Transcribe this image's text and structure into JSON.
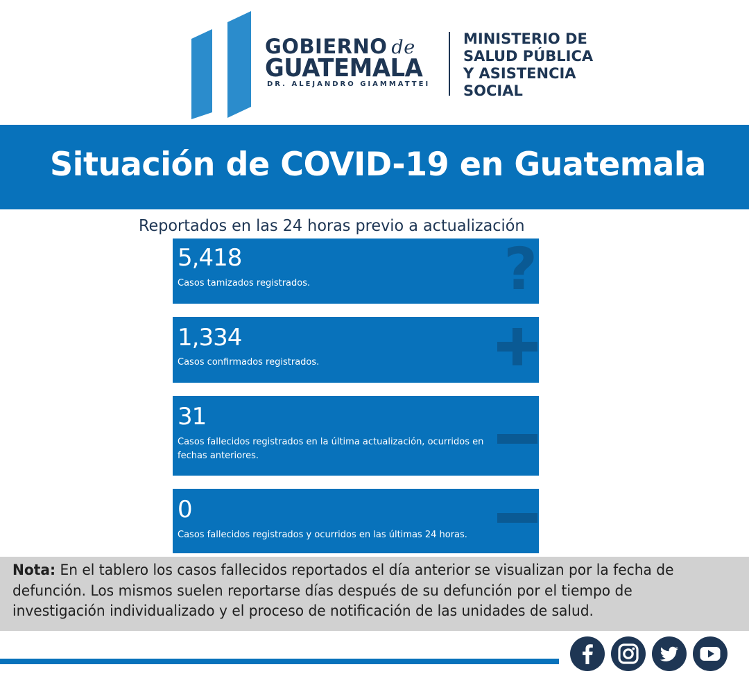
{
  "header": {
    "gobierno": "GOBIERNO",
    "de": "de",
    "guatemala": "GUATEMALA",
    "presidente": "DR. ALEJANDRO GIAMMATTEI",
    "ministerio_lines": [
      "MINISTERIO DE",
      "SALUD PÚBLICA",
      "Y ASISTENCIA",
      "SOCIAL"
    ]
  },
  "banner": {
    "title": "Situación de COVID-19 en Guatemala"
  },
  "subtitle": "Reportados en las 24 horas previo a actualización",
  "cards": [
    {
      "value": "5,418",
      "label": "Casos tamizados registrados.",
      "icon": "question-icon"
    },
    {
      "value": "1,334",
      "label": "Casos confirmados registrados.",
      "icon": "plus-icon"
    },
    {
      "value": "31",
      "label": "Casos fallecidos registrados en la última actualización, ocurridos en fechas anteriores.",
      "icon": "minus-icon"
    },
    {
      "value": "0",
      "label": "Casos fallecidos registrados y ocurridos en las últimas 24 horas.",
      "icon": "minus-icon"
    }
  ],
  "note": {
    "label": "Nota:",
    "text": "En el tablero los casos fallecidos reportados el día anterior se visualizan por la fecha de defunción. Los mismos suelen reportarse días después de su defunción por el tiempo de investigación individualizado y el proceso de notificación de las unidades de salud."
  },
  "social": [
    "facebook-icon",
    "instagram-icon",
    "twitter-icon",
    "youtube-icon"
  ],
  "colors": {
    "brand_blue": "#0872bb",
    "navy": "#1e3654",
    "icon_dark": "#0a5a94",
    "note_bg": "#d1d1d1"
  }
}
